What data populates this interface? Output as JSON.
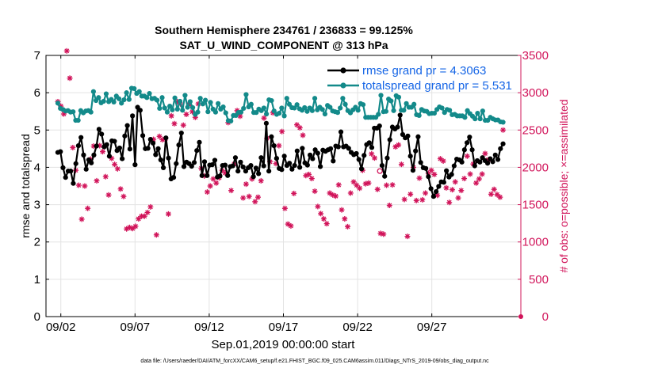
{
  "chart_data": {
    "type": "line",
    "title": "Southern Hemisphere 234761 / 236833 = 99.125%",
    "subtitle": "SAT_U_WIND_COMPONENT @ 313 hPa",
    "ylabel": "rmse and totalspread",
    "ylabel_right": "# of obs: o=possible; ×=assimilated",
    "xlabel": "Sep.01,2019 00:00:00 start",
    "footer": "data file: /Users/raeder/DAI/ATM_forcXX/CAM6_setup/f.e21.FHIST_BGC.f09_025.CAM6assim.011/Diags_NTrS_2019-09/obs_diag_output.nc",
    "xlim": [
      1,
      33
    ],
    "ylim": [
      0,
      7
    ],
    "ylim_right": [
      0,
      3500
    ],
    "grid": true,
    "legend_position": "top-right",
    "xticks": [
      {
        "value": 2,
        "label": "09/02"
      },
      {
        "value": 7,
        "label": "09/07"
      },
      {
        "value": 12,
        "label": "09/12"
      },
      {
        "value": 17,
        "label": "09/17"
      },
      {
        "value": 22,
        "label": "09/22"
      },
      {
        "value": 27,
        "label": "09/27"
      }
    ],
    "yticks": [
      "0",
      "1",
      "2",
      "3",
      "4",
      "5",
      "6",
      "7"
    ],
    "yticks_right": [
      "0",
      "500",
      "1000",
      "1500",
      "2000",
      "2500",
      "3000",
      "3500"
    ],
    "legend": [
      {
        "name": "rmse grand pr = 4.3063",
        "color": "#000000"
      },
      {
        "name": "totalspread grand pr = 5.531",
        "color": "#138a8a"
      }
    ],
    "series": [
      {
        "name": "rmse",
        "axis": "left",
        "color": "#000000",
        "values": [
          4.4,
          4.42,
          3.99,
          3.73,
          3.9,
          3.9,
          3.57,
          4.1,
          4.58,
          4.8,
          4.33,
          3.95,
          4.2,
          4.12,
          4.33,
          4.57,
          5.02,
          4.89,
          4.55,
          4.61,
          4.3,
          4.71,
          4.7,
          4.45,
          4.52,
          4.23,
          4.84,
          5.12,
          4.49,
          5.38,
          4.07,
          5.61,
          5.53,
          4.85,
          4.5,
          4.51,
          4.75,
          4.65,
          4.34,
          4.5,
          4.2,
          3.99,
          4.79,
          4.25,
          3.69,
          3.73,
          4.1,
          4.6,
          4.92,
          4.02,
          4.14,
          4.1,
          4.03,
          4.13,
          4.45,
          4.67,
          3.78,
          4.15,
          3.78,
          4.06,
          4.07,
          4.19,
          3.74,
          3.77,
          4.05,
          4.06,
          3.78,
          4.02,
          4.04,
          4.26,
          3.9,
          4.14,
          4.01,
          3.9,
          3.99,
          4.05,
          3.75,
          3.98,
          3.83,
          4.26,
          4.04,
          5.18,
          3.9,
          4.82,
          4.58,
          4.24,
          3.97,
          3.94,
          4.3,
          4.05,
          4.11,
          3.95,
          4.05,
          4.44,
          4.0,
          4.51,
          4.12,
          4.06,
          4.33,
          4.23,
          4.47,
          4.38,
          4.02,
          4.46,
          4.43,
          4.47,
          4.5,
          4.17,
          4.57,
          4.55,
          4.95,
          4.55,
          4.57,
          4.51,
          4.4,
          4.34,
          4.37,
          4.21,
          3.96,
          4.32,
          4.61,
          4.66,
          4.53,
          5.05,
          5.05,
          5.11,
          4.05,
          3.76,
          4.25,
          4.74,
          5.08,
          5.03,
          5.08,
          5.4,
          4.88,
          4.79,
          4.84,
          4.3,
          3.92,
          4.44,
          4.82,
          4.13,
          3.99,
          3.97,
          3.75,
          3.43,
          3.22,
          3.35,
          3.49,
          3.61,
          3.6,
          3.91,
          3.74,
          3.81,
          4.04,
          4.22,
          4.2,
          4.14,
          4.47,
          4.66,
          4.81,
          4.47,
          4.04,
          4.18,
          4.14,
          4.26,
          4.18,
          4.11,
          4.23,
          4.15,
          4.33,
          4.21,
          4.5,
          4.63
        ]
      },
      {
        "name": "totalspread",
        "axis": "left",
        "color": "#138a8a",
        "values": [
          5.72,
          5.58,
          5.55,
          5.51,
          5.52,
          5.48,
          5.49,
          5.26,
          5.26,
          5.52,
          5.46,
          5.51,
          5.52,
          5.48,
          6.03,
          5.79,
          5.87,
          5.73,
          5.77,
          5.97,
          5.76,
          5.82,
          5.75,
          5.91,
          5.84,
          5.72,
          5.81,
          6.0,
          5.82,
          6.12,
          6.11,
          5.98,
          6.03,
          5.91,
          5.91,
          5.87,
          5.98,
          5.84,
          5.85,
          5.8,
          5.58,
          5.87,
          5.59,
          5.48,
          5.64,
          5.54,
          5.86,
          5.56,
          5.77,
          5.53,
          5.93,
          5.61,
          5.76,
          5.6,
          5.42,
          5.48,
          5.85,
          5.7,
          5.8,
          5.49,
          5.74,
          5.56,
          5.48,
          5.71,
          5.56,
          5.62,
          5.46,
          5.25,
          5.24,
          5.39,
          5.39,
          5.47,
          5.48,
          5.58,
          5.95,
          5.62,
          5.69,
          5.47,
          5.47,
          5.56,
          5.52,
          5.59,
          5.43,
          5.81,
          5.79,
          5.51,
          5.42,
          5.45,
          5.59,
          5.38,
          5.85,
          5.69,
          5.6,
          5.59,
          5.68,
          5.57,
          5.53,
          5.6,
          5.5,
          5.59,
          5.52,
          5.85,
          5.54,
          5.61,
          5.55,
          5.43,
          5.66,
          5.61,
          5.51,
          5.49,
          5.47,
          5.59,
          5.85,
          5.69,
          5.52,
          5.46,
          5.54,
          5.61,
          5.53,
          5.71,
          5.68,
          5.34,
          5.34,
          5.34,
          5.34,
          5.34,
          5.42,
          5.93,
          5.49,
          5.5,
          5.83,
          5.78,
          5.52,
          5.92,
          5.88,
          5.53,
          5.53,
          5.71,
          5.61,
          5.61,
          5.69,
          5.41,
          5.39,
          5.55,
          5.51,
          5.5,
          5.44,
          5.45,
          5.45,
          5.55,
          5.62,
          5.59,
          5.47,
          5.55,
          5.53,
          5.41,
          5.42,
          5.38,
          5.38,
          5.38,
          5.34,
          5.52,
          5.44,
          5.37,
          5.3,
          5.45,
          5.3,
          5.51,
          5.26,
          5.26,
          5.34,
          5.3,
          5.27,
          5.27,
          5.22,
          5.21
        ]
      },
      {
        "name": "obs assimilated",
        "axis": "right",
        "marker": "asterisk",
        "color": "#d1145a",
        "values": [
          2880,
          2820,
          2715,
          3560,
          3195,
          2265,
          1960,
          1760,
          1305,
          1750,
          1450,
          2110,
          2285,
          1820,
          2290,
          2210,
          1875,
          1630,
          2120,
          2040,
          1980,
          1710,
          1610,
          1175,
          1195,
          1180,
          1210,
          1310,
          1345,
          1345,
          1395,
          1470,
          2375,
          1095,
          2415,
          2370,
          2380,
          1375,
          2690,
          2585,
          2880,
          2850,
          2565,
          2710,
          2840,
          2745,
          2670,
          2850,
          1985,
          1885,
          1670,
          1750,
          1845,
          1790,
          1860,
          1960,
          1925,
          2600,
          1690,
          2045,
          2760,
          2685,
          1590,
          1775,
          1610,
          1845,
          1540,
          1600,
          1820,
          2660,
          2390,
          2075,
          2730,
          2050,
          2290,
          2480,
          1450,
          1240,
          1215,
          1650,
          2570,
          2530,
          2430,
          1890,
          1905,
          1850,
          1680,
          1475,
          1380,
          1310,
          1245,
          1655,
          1630,
          1615,
          1765,
          1430,
          1310,
          1205,
          1655,
          1805,
          1760,
          1720,
          1960,
          1780,
          1790,
          2180,
          2125,
          1705,
          1115,
          1105,
          1760,
          1490,
          1765,
          2275,
          2300,
          2040,
          1570,
          1075,
          1640,
          2000,
          1555,
          1855,
          1565,
          1655,
          1920,
          1960,
          1905,
          1625,
          2115,
          2085,
          1725,
          1530,
          1700,
          1805,
          1590,
          1690,
          1850,
          2150,
          1910,
          2045,
          1790,
          1845,
          1910,
          2185,
          2100,
          1640,
          1705,
          1635,
          1600,
          2500
        ]
      },
      {
        "name": "obs possible",
        "axis": "right",
        "marker": "circle",
        "color": "#d1145a",
        "values": [
          1950
        ]
      }
    ]
  }
}
